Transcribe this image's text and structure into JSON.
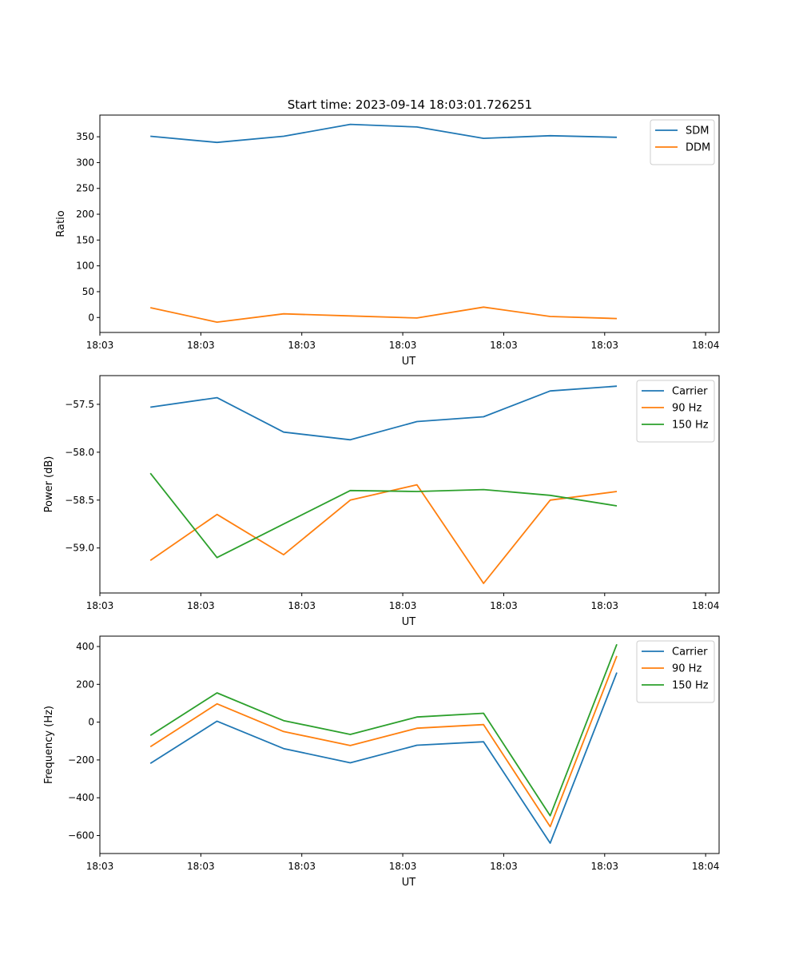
{
  "figure_title": "Start time: 2023-09-14 18:03:01.726251",
  "colors": {
    "blue": "#1f77b4",
    "orange": "#ff7f0e",
    "green": "#2ca02c"
  },
  "chart_data": [
    {
      "type": "line",
      "xlabel": "UT",
      "ylabel": "Ratio",
      "xlim": [
        0,
        9.2
      ],
      "x_ticks": [
        {
          "x": 0,
          "label": "18:03"
        },
        {
          "x": 1.5,
          "label": "18:03"
        },
        {
          "x": 3,
          "label": "18:03"
        },
        {
          "x": 4.5,
          "label": "18:03"
        },
        {
          "x": 6,
          "label": "18:03"
        },
        {
          "x": 7.5,
          "label": "18:03"
        },
        {
          "x": 9,
          "label": "18:04"
        }
      ],
      "ylim": [
        -29,
        392
      ],
      "y_ticks": [
        {
          "y": 0,
          "label": "0"
        },
        {
          "y": 50,
          "label": "50"
        },
        {
          "y": 100,
          "label": "100"
        },
        {
          "y": 150,
          "label": "150"
        },
        {
          "y": 200,
          "label": "200"
        },
        {
          "y": 250,
          "label": "250"
        },
        {
          "y": 300,
          "label": "300"
        },
        {
          "y": 350,
          "label": "350"
        }
      ],
      "legend_position": "top-right",
      "x": [
        0.75,
        1.74,
        2.73,
        3.72,
        4.71,
        5.7,
        6.69,
        7.68
      ],
      "series": [
        {
          "name": "SDM",
          "color": "#1f77b4",
          "values": [
            351,
            339,
            351,
            374,
            369,
            347,
            352,
            349
          ]
        },
        {
          "name": "DDM",
          "color": "#ff7f0e",
          "values": [
            19,
            -9,
            7,
            3,
            -1,
            20,
            2,
            -2
          ]
        }
      ]
    },
    {
      "type": "line",
      "xlabel": "UT",
      "ylabel": "Power (dB)",
      "xlim": [
        0,
        9.2
      ],
      "x_ticks": [
        {
          "x": 0,
          "label": "18:03"
        },
        {
          "x": 1.5,
          "label": "18:03"
        },
        {
          "x": 3,
          "label": "18:03"
        },
        {
          "x": 4.5,
          "label": "18:03"
        },
        {
          "x": 6,
          "label": "18:03"
        },
        {
          "x": 7.5,
          "label": "18:03"
        },
        {
          "x": 9,
          "label": "18:04"
        }
      ],
      "ylim": [
        -59.47,
        -57.2
      ],
      "y_ticks": [
        {
          "y": -59.0,
          "label": "−59.0"
        },
        {
          "y": -58.5,
          "label": "−58.5"
        },
        {
          "y": -58.0,
          "label": "−58.0"
        },
        {
          "y": -57.5,
          "label": "−57.5"
        }
      ],
      "legend_position": "top-right",
      "x": [
        0.75,
        1.74,
        2.73,
        3.72,
        4.71,
        5.7,
        6.69,
        7.68
      ],
      "series": [
        {
          "name": "Carrier",
          "color": "#1f77b4",
          "values": [
            -57.53,
            -57.43,
            -57.79,
            -57.87,
            -57.68,
            -57.63,
            -57.36,
            -57.31
          ]
        },
        {
          "name": "90 Hz",
          "color": "#ff7f0e",
          "values": [
            -59.13,
            -58.65,
            -59.07,
            -58.5,
            -58.34,
            -59.37,
            -58.5,
            -58.41
          ]
        },
        {
          "name": "150 Hz",
          "color": "#2ca02c",
          "values": [
            -58.22,
            -59.1,
            -58.75,
            -58.4,
            -58.41,
            -58.39,
            -58.45,
            -58.56
          ]
        }
      ]
    },
    {
      "type": "line",
      "xlabel": "UT",
      "ylabel": "Frequency (Hz)",
      "xlim": [
        0,
        9.2
      ],
      "x_ticks": [
        {
          "x": 0,
          "label": "18:03"
        },
        {
          "x": 1.5,
          "label": "18:03"
        },
        {
          "x": 3,
          "label": "18:03"
        },
        {
          "x": 4.5,
          "label": "18:03"
        },
        {
          "x": 6,
          "label": "18:03"
        },
        {
          "x": 7.5,
          "label": "18:03"
        },
        {
          "x": 9,
          "label": "18:04"
        }
      ],
      "ylim": [
        -695,
        455
      ],
      "y_ticks": [
        {
          "y": -600,
          "label": "−600"
        },
        {
          "y": -400,
          "label": "−400"
        },
        {
          "y": -200,
          "label": "−200"
        },
        {
          "y": 0,
          "label": "0"
        },
        {
          "y": 200,
          "label": "200"
        },
        {
          "y": 400,
          "label": "400"
        }
      ],
      "legend_position": "top-right",
      "x": [
        0.75,
        1.74,
        2.73,
        3.72,
        4.71,
        5.7,
        6.69,
        7.68
      ],
      "series": [
        {
          "name": "Carrier",
          "color": "#1f77b4",
          "values": [
            -218,
            5,
            -140,
            -215,
            -122,
            -104,
            -640,
            262
          ]
        },
        {
          "name": "90 Hz",
          "color": "#ff7f0e",
          "values": [
            -130,
            97,
            -50,
            -124,
            -32,
            -13,
            -553,
            350
          ]
        },
        {
          "name": "150 Hz",
          "color": "#2ca02c",
          "values": [
            -70,
            155,
            8,
            -65,
            27,
            47,
            -495,
            412
          ]
        }
      ]
    }
  ]
}
